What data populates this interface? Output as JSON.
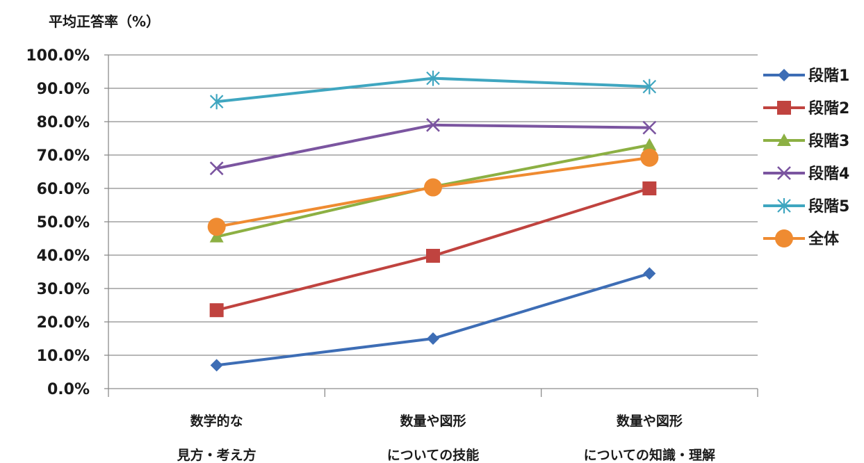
{
  "chart_data": {
    "type": "line",
    "ylabel": "平均正答率（%）",
    "yticks": [
      "0.0%",
      "10.0%",
      "20.0%",
      "30.0%",
      "40.0%",
      "50.0%",
      "60.0%",
      "70.0%",
      "80.0%",
      "90.0%",
      "100.0%"
    ],
    "ylim": [
      0,
      100
    ],
    "grid": true,
    "legend_position": "right",
    "categories": [
      [
        "数学的な",
        "見方・考え方"
      ],
      [
        "数量や図形",
        "についての技能"
      ],
      [
        "数量や図形",
        "についての知識・理解"
      ]
    ],
    "series": [
      {
        "name": "段階1",
        "color": "#3d6db5",
        "marker": "diamond",
        "values": [
          7.0,
          15.0,
          34.5
        ]
      },
      {
        "name": "段階2",
        "color": "#c0433f",
        "marker": "square",
        "values": [
          23.5,
          39.8,
          60.0
        ]
      },
      {
        "name": "段階3",
        "color": "#8cb043",
        "marker": "triangle",
        "values": [
          45.5,
          60.5,
          73.0
        ]
      },
      {
        "name": "段階4",
        "color": "#7b55a0",
        "marker": "x",
        "values": [
          66.0,
          79.0,
          78.2
        ]
      },
      {
        "name": "段階5",
        "color": "#3fa6c0",
        "marker": "asterisk",
        "values": [
          86.0,
          93.0,
          90.5
        ]
      },
      {
        "name": "全体",
        "color": "#ef8b31",
        "marker": "circle",
        "values": [
          48.5,
          60.3,
          69.2
        ]
      }
    ]
  }
}
